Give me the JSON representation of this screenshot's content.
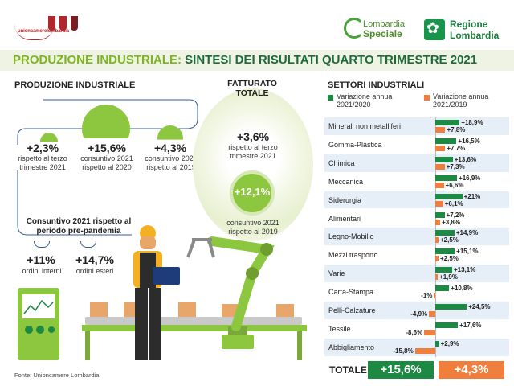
{
  "header": {
    "logo_unioncamere": "unioncamerelombardia",
    "logo_lombardia_speciale_1": "Lombardia",
    "logo_lombardia_speciale_2": "Speciale",
    "logo_regione_1": "Regione",
    "logo_regione_2": "Lombardia"
  },
  "title": {
    "part1": "PRODUZIONE INDUSTRIALE:",
    "part2": " SINTESI DEI RISULTATI QUARTO TRIMESTRE 2021"
  },
  "produzione": {
    "heading": "PRODUZIONE INDUSTRIALE",
    "items": [
      {
        "value": "+2,3%",
        "label": "rispetto al terzo trimestre 2021"
      },
      {
        "value": "+15,6%",
        "label": "consuntivo 2021 rispetto al 2020"
      },
      {
        "value": "+4,3%",
        "label": "consuntivo 2021 rispetto al 2019"
      }
    ]
  },
  "consuntivo": {
    "heading": "Consuntivo 2021 rispetto al periodo pre-pandemia",
    "items": [
      {
        "value": "+11%",
        "label": "ordini interni"
      },
      {
        "value": "+14,7%",
        "label": "ordini esteri"
      }
    ]
  },
  "fatturato": {
    "heading": "FATTURATO TOTALE",
    "q_value": "+3,6%",
    "q_label": "rispetto al terzo trimestre 2021",
    "y_value": "+12,1%",
    "y_label": "consuntivo 2021 rispetto al 2019"
  },
  "source": "Fonte: Unioncamere Lombardia",
  "colors": {
    "green": "#1c8a43",
    "orange": "#f07e3c",
    "light_green": "#8dc63f"
  },
  "chart_data": {
    "type": "bar",
    "title": "SETTORI INDUSTRIALI",
    "orientation": "horizontal",
    "categories": [
      "Minerali non metalliferi",
      "Gomma-Plastica",
      "Chimica",
      "Meccanica",
      "Siderurgia",
      "Alimentari",
      "Legno-Mobilio",
      "Mezzi trasporto",
      "Varie",
      "Carta-Stampa",
      "Pelli-Calzature",
      "Tessile",
      "Abbigliamento"
    ],
    "series": [
      {
        "name": "Variazione annua 2021/2020",
        "color": "#1c8a43",
        "values": [
          18.9,
          16.5,
          13.6,
          16.9,
          21,
          7.2,
          14.9,
          15.1,
          13.1,
          10.8,
          24.5,
          17.6,
          2.9
        ],
        "labels": [
          "+18,9%",
          "+16,5%",
          "+13,6%",
          "+16,9%",
          "+21%",
          "+7,2%",
          "+14,9%",
          "+15,1%",
          "+13,1%",
          "+10,8%",
          "+24,5%",
          "+17,6%",
          "+2,9%"
        ]
      },
      {
        "name": "Variazione annua 2021/2019",
        "color": "#f07e3c",
        "values": [
          7.8,
          7.7,
          7.3,
          6.6,
          6.1,
          3.8,
          2.5,
          2.5,
          1.9,
          -1,
          -4.9,
          -8.6,
          -15.8
        ],
        "labels": [
          "+7,8%",
          "+7,7%",
          "+7,3%",
          "+6,6%",
          "+6,1%",
          "+3,8%",
          "+2,5%",
          "+2,5%",
          "+1,9%",
          "-1%",
          "-4,9%",
          "-8,6%",
          "-15,8%"
        ]
      }
    ],
    "total": {
      "label": "TOTALE",
      "values": [
        "+15,6%",
        "+4,3%"
      ]
    }
  }
}
